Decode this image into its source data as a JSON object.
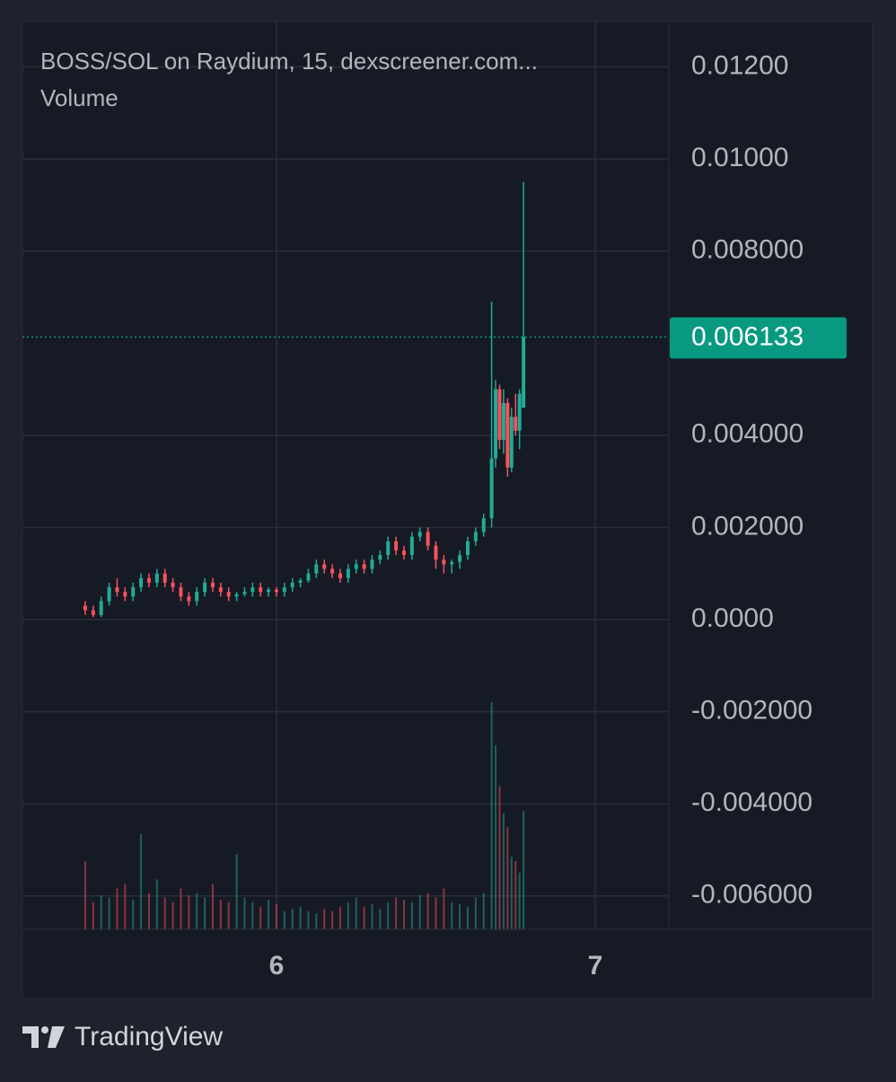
{
  "chart_data": {
    "type": "candlestick",
    "title": "BOSS/SOL on Raydium, 15, dexscreener.com...",
    "subtitle": "Volume",
    "brand": "TradingView",
    "up_color": "#22ab94",
    "down_color": "#f7525f",
    "xlim": [
      5.203,
      7.231
    ],
    "xticks": [
      6,
      7
    ],
    "ylim": [
      -0.006725,
      0.012982
    ],
    "yticks": [
      {
        "value": 0.012,
        "label": "0.01200"
      },
      {
        "value": 0.01,
        "label": "0.01000"
      },
      {
        "value": 0.008,
        "label": "0.008000"
      },
      {
        "value": 0.004,
        "label": "0.004000"
      },
      {
        "value": 0.002,
        "label": "0.002000"
      },
      {
        "value": 0,
        "label": "0.0000"
      },
      {
        "value": -0.002,
        "label": "-0.002000"
      },
      {
        "value": -0.004,
        "label": "-0.004000"
      },
      {
        "value": -0.006,
        "label": "-0.006000"
      }
    ],
    "grid": true,
    "last_price": 0.006133,
    "last_price_color": "#089981",
    "vlim": [
      0,
      100
    ],
    "x": [
      5.4,
      5.425,
      5.45,
      5.475,
      5.5,
      5.525,
      5.55,
      5.575,
      5.6,
      5.625,
      5.65,
      5.675,
      5.7,
      5.725,
      5.75,
      5.775,
      5.8,
      5.825,
      5.85,
      5.875,
      5.9,
      5.925,
      5.95,
      5.975,
      6,
      6.025,
      6.05,
      6.075,
      6.1,
      6.125,
      6.15,
      6.175,
      6.2,
      6.225,
      6.25,
      6.275,
      6.3,
      6.325,
      6.35,
      6.375,
      6.4,
      6.425,
      6.45,
      6.475,
      6.5,
      6.525,
      6.55,
      6.575,
      6.6,
      6.625,
      6.65,
      6.675,
      6.6875,
      6.7,
      6.7125,
      6.725,
      6.7375,
      6.75,
      6.7625,
      6.775
    ],
    "ohlc": [
      [
        0.0003,
        0.0004,
        0.0001,
        0.0002
      ],
      [
        0.0002,
        0.0003,
        5e-05,
        0.0001
      ],
      [
        0.0001,
        0.0005,
        5e-05,
        0.0004
      ],
      [
        0.0004,
        0.0008,
        0.0003,
        0.0007
      ],
      [
        0.0007,
        0.0009,
        0.0005,
        0.0006
      ],
      [
        0.0006,
        0.0007,
        0.0004,
        0.0005
      ],
      [
        0.0005,
        0.0008,
        0.0004,
        0.0007
      ],
      [
        0.0007,
        0.001,
        0.0006,
        0.0009
      ],
      [
        0.0009,
        0.001,
        0.0007,
        0.0008
      ],
      [
        0.0008,
        0.0011,
        0.0007,
        0.001
      ],
      [
        0.001,
        0.0011,
        0.0007,
        0.0008
      ],
      [
        0.0008,
        0.0009,
        0.0006,
        0.0007
      ],
      [
        0.0007,
        0.0008,
        0.0004,
        0.0005
      ],
      [
        0.0005,
        0.0006,
        0.0003,
        0.0004
      ],
      [
        0.0004,
        0.0007,
        0.0003,
        0.0006
      ],
      [
        0.0006,
        0.0009,
        0.0005,
        0.0008
      ],
      [
        0.0008,
        0.0009,
        0.0006,
        0.0007
      ],
      [
        0.0007,
        0.0008,
        0.0005,
        0.0006
      ],
      [
        0.0006,
        0.0007,
        0.0004,
        0.0005
      ],
      [
        0.0005,
        0.0006,
        0.0004,
        0.00055
      ],
      [
        0.00055,
        0.0007,
        0.0005,
        0.0006
      ],
      [
        0.0006,
        0.0008,
        0.0005,
        0.0007
      ],
      [
        0.0007,
        0.0008,
        0.0005,
        0.0006
      ],
      [
        0.0006,
        0.0007,
        0.0005,
        0.00065
      ],
      [
        0.00065,
        0.0007,
        0.0005,
        0.0006
      ],
      [
        0.0006,
        0.0008,
        0.0005,
        0.0007
      ],
      [
        0.0007,
        0.0009,
        0.0006,
        0.0008
      ],
      [
        0.0008,
        0.0009,
        0.0007,
        0.00085
      ],
      [
        0.00085,
        0.0011,
        0.0008,
        0.001
      ],
      [
        0.001,
        0.0013,
        0.0009,
        0.0012
      ],
      [
        0.0012,
        0.0013,
        0.001,
        0.0011
      ],
      [
        0.0011,
        0.0012,
        0.0009,
        0.001
      ],
      [
        0.001,
        0.0011,
        0.0008,
        0.0009
      ],
      [
        0.0009,
        0.0012,
        0.0008,
        0.0011
      ],
      [
        0.0011,
        0.0013,
        0.001,
        0.0012
      ],
      [
        0.0012,
        0.0013,
        0.001,
        0.0011
      ],
      [
        0.0011,
        0.0014,
        0.001,
        0.0013
      ],
      [
        0.0013,
        0.0015,
        0.0012,
        0.0014
      ],
      [
        0.0014,
        0.0018,
        0.0013,
        0.0017
      ],
      [
        0.0017,
        0.0018,
        0.0014,
        0.0015
      ],
      [
        0.0015,
        0.0016,
        0.0013,
        0.0014
      ],
      [
        0.0014,
        0.0019,
        0.0013,
        0.0018
      ],
      [
        0.0018,
        0.002,
        0.0017,
        0.0019
      ],
      [
        0.0019,
        0.002,
        0.0015,
        0.0016
      ],
      [
        0.0016,
        0.0017,
        0.0011,
        0.0013
      ],
      [
        0.0013,
        0.0014,
        0.001,
        0.0012
      ],
      [
        0.0012,
        0.0013,
        0.001,
        0.00125
      ],
      [
        0.00125,
        0.0015,
        0.0011,
        0.0014
      ],
      [
        0.0014,
        0.0018,
        0.0013,
        0.0017
      ],
      [
        0.0017,
        0.002,
        0.0016,
        0.0019
      ],
      [
        0.0019,
        0.0023,
        0.0018,
        0.0022
      ],
      [
        0.0022,
        0.0069,
        0.002,
        0.0035
      ],
      [
        0.0035,
        0.0052,
        0.0033,
        0.005
      ],
      [
        0.005,
        0.0051,
        0.0037,
        0.0039
      ],
      [
        0.0039,
        0.005,
        0.0036,
        0.0047
      ],
      [
        0.0047,
        0.0048,
        0.0031,
        0.0033
      ],
      [
        0.0033,
        0.0046,
        0.0032,
        0.0044
      ],
      [
        0.0044,
        0.0049,
        0.004,
        0.0041
      ],
      [
        0.0041,
        0.005,
        0.0037,
        0.0049
      ],
      [
        0.0046,
        0.0095,
        0.0046,
        0.006133
      ]
    ],
    "volume": [
      30,
      12,
      15,
      14,
      18,
      20,
      13,
      42,
      16,
      22,
      14,
      12,
      18,
      15,
      16,
      14,
      20,
      13,
      12,
      33,
      14,
      12,
      10,
      13,
      11,
      8,
      9,
      10,
      8,
      7,
      9,
      8,
      10,
      12,
      14,
      10,
      11,
      9,
      12,
      14,
      13,
      12,
      15,
      16,
      14,
      18,
      12,
      11,
      10,
      14,
      16,
      100,
      81,
      63,
      51,
      45,
      32,
      30,
      25,
      52
    ]
  }
}
